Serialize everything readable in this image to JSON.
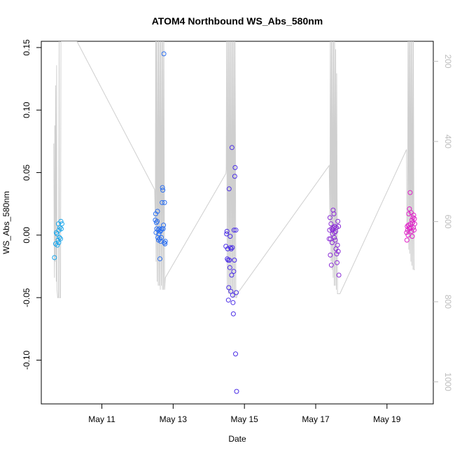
{
  "chart_data": {
    "type": "scatter",
    "title": "ATOM4 Northbound WS_Abs_580nm",
    "xlabel": "Date",
    "ylabel": "WS_Abs_580nm",
    "x_unit": "day of May 2017",
    "xlim": [
      9.3,
      20.3
    ],
    "ylim": [
      -0.135,
      0.155
    ],
    "x_ticks": [
      11,
      13,
      15,
      17,
      19
    ],
    "x_tick_labels": [
      "May 11",
      "May 13",
      "May 15",
      "May 17",
      "May 19"
    ],
    "y_ticks": [
      -0.1,
      -0.05,
      0.0,
      0.05,
      0.1,
      0.15
    ],
    "y_tick_labels": [
      "-0.10",
      "-0.05",
      "0.00",
      "0.05",
      "0.10",
      "0.15"
    ],
    "right_axis": {
      "lim": [
        1055,
        150
      ],
      "ticks": [
        200,
        400,
        600,
        800,
        1000
      ],
      "tick_labels": [
        "200",
        "400",
        "600",
        "800",
        "1000"
      ],
      "color": "#bdbdbd"
    },
    "grid": false,
    "marker": "open-circle",
    "series": [
      {
        "color": "#1aa7ec",
        "points": [
          [
            9.67,
            -0.018
          ],
          [
            9.7,
            -0.007
          ],
          [
            9.72,
            0.002
          ],
          [
            9.74,
            0.001
          ],
          [
            9.75,
            -0.008
          ],
          [
            9.77,
            -0.004
          ],
          [
            9.78,
            0.009
          ],
          [
            9.79,
            -0.006
          ],
          [
            9.8,
            0.004
          ],
          [
            9.81,
            -0.002
          ],
          [
            9.82,
            0.006
          ],
          [
            9.84,
            -0.003
          ],
          [
            9.85,
            0.011
          ],
          [
            9.86,
            0.005
          ],
          [
            9.88,
            0.009
          ]
        ]
      },
      {
        "color": "#2b6ff0",
        "points": [
          [
            12.5,
            0.012
          ],
          [
            12.51,
            0.017
          ],
          [
            12.52,
            0.002
          ],
          [
            12.53,
            0.01
          ],
          [
            12.54,
            0.005
          ],
          [
            12.55,
            0.011
          ],
          [
            12.56,
            0.019
          ],
          [
            12.57,
            -0.002
          ],
          [
            12.58,
            0.004
          ],
          [
            12.59,
            -0.004
          ],
          [
            12.6,
            0.001
          ],
          [
            12.61,
            0.005
          ],
          [
            12.62,
            -0.003
          ],
          [
            12.63,
            -0.019
          ],
          [
            12.64,
            0.003
          ],
          [
            12.65,
            -0.005
          ],
          [
            12.66,
            0.004
          ],
          [
            12.67,
            -0.002
          ],
          [
            12.68,
            0.005
          ],
          [
            12.69,
            0.026
          ],
          [
            12.7,
            0.038
          ],
          [
            12.71,
            0.036
          ],
          [
            12.72,
            0.005
          ],
          [
            12.73,
            0.008
          ],
          [
            12.74,
            0.145
          ],
          [
            12.75,
            -0.006
          ],
          [
            12.76,
            0.026
          ],
          [
            12.77,
            -0.007
          ],
          [
            12.78,
            -0.005
          ]
        ]
      },
      {
        "color": "#4b2ee6",
        "points": [
          [
            14.48,
            -0.009
          ],
          [
            14.5,
            0.001
          ],
          [
            14.51,
            0.003
          ],
          [
            14.52,
            -0.019
          ],
          [
            14.53,
            -0.011
          ],
          [
            14.54,
            -0.02
          ],
          [
            14.55,
            -0.052
          ],
          [
            14.56,
            -0.042
          ],
          [
            14.57,
            0.037
          ],
          [
            14.58,
            -0.02
          ],
          [
            14.59,
            -0.026
          ],
          [
            14.6,
            -0.001
          ],
          [
            14.61,
            -0.01
          ],
          [
            14.62,
            -0.045
          ],
          [
            14.63,
            -0.011
          ],
          [
            14.64,
            -0.032
          ],
          [
            14.65,
            0.07
          ],
          [
            14.66,
            -0.01
          ],
          [
            14.67,
            -0.048
          ],
          [
            14.68,
            -0.054
          ],
          [
            14.69,
            -0.063
          ],
          [
            14.7,
            -0.029
          ],
          [
            14.71,
            0.004
          ],
          [
            14.72,
            -0.02
          ],
          [
            14.73,
            0.047
          ],
          [
            14.74,
            0.054
          ],
          [
            14.75,
            -0.095
          ],
          [
            14.76,
            0.004
          ],
          [
            14.77,
            -0.046
          ],
          [
            14.78,
            -0.125
          ]
        ]
      },
      {
        "color": "#8a2bd6",
        "points": [
          [
            17.38,
            -0.003
          ],
          [
            17.39,
            0.004
          ],
          [
            17.4,
            0.014
          ],
          [
            17.41,
            -0.016
          ],
          [
            17.42,
            -0.003
          ],
          [
            17.43,
            0.009
          ],
          [
            17.44,
            -0.024
          ],
          [
            17.45,
            0.005
          ],
          [
            17.46,
            -0.006
          ],
          [
            17.47,
            0.001
          ],
          [
            17.48,
            0.004
          ],
          [
            17.49,
            0.02
          ],
          [
            17.5,
            0.006
          ],
          [
            17.51,
            0.017
          ],
          [
            17.52,
            -0.002
          ],
          [
            17.53,
            0.002
          ],
          [
            17.54,
            0.007
          ],
          [
            17.55,
            -0.004
          ],
          [
            17.56,
            0.003
          ],
          [
            17.57,
            -0.011
          ],
          [
            17.58,
            0.006
          ],
          [
            17.59,
            -0.015
          ],
          [
            17.6,
            -0.022
          ],
          [
            17.61,
            -0.008
          ],
          [
            17.62,
            0.011
          ],
          [
            17.63,
            -0.013
          ],
          [
            17.64,
            0.007
          ],
          [
            17.65,
            -0.032
          ]
        ]
      },
      {
        "color": "#e020c8",
        "points": [
          [
            19.55,
            0.002
          ],
          [
            19.56,
            -0.004
          ],
          [
            19.57,
            0.007
          ],
          [
            19.58,
            0.004
          ],
          [
            19.59,
            0.0
          ],
          [
            19.6,
            0.008
          ],
          [
            19.61,
            0.017
          ],
          [
            19.62,
            0.006
          ],
          [
            19.63,
            0.021
          ],
          [
            19.64,
            0.005
          ],
          [
            19.65,
            0.034
          ],
          [
            19.66,
            0.009
          ],
          [
            19.67,
            0.006
          ],
          [
            19.68,
            0.018
          ],
          [
            19.69,
            0.003
          ],
          [
            19.7,
            0.012
          ],
          [
            19.71,
            -0.001
          ],
          [
            19.72,
            0.01
          ],
          [
            19.73,
            0.014
          ],
          [
            19.74,
            0.006
          ],
          [
            19.75,
            0.016
          ],
          [
            19.76,
            0.004
          ],
          [
            19.77,
            0.013
          ],
          [
            19.78,
            0.009
          ]
        ]
      }
    ],
    "line_series": {
      "axis": "right",
      "color": "#cfcfcf",
      "points": [
        [
          9.65,
          405
        ],
        [
          9.66,
          600
        ],
        [
          9.67,
          740
        ],
        [
          9.68,
          360
        ],
        [
          9.69,
          700
        ],
        [
          9.7,
          260
        ],
        [
          9.72,
          750
        ],
        [
          9.73,
          210
        ],
        [
          9.74,
          770
        ],
        [
          9.76,
          790
        ],
        [
          9.78,
          790
        ],
        [
          9.79,
          640
        ],
        [
          9.8,
          150
        ],
        [
          9.81,
          790
        ],
        [
          9.84,
          790
        ],
        [
          9.85,
          150
        ],
        [
          10.3,
          150
        ],
        [
          12.48,
          520
        ],
        [
          12.5,
          600
        ],
        [
          12.51,
          150
        ],
        [
          12.52,
          700
        ],
        [
          12.53,
          150
        ],
        [
          12.55,
          750
        ],
        [
          12.56,
          150
        ],
        [
          12.58,
          760
        ],
        [
          12.59,
          150
        ],
        [
          12.61,
          760
        ],
        [
          12.62,
          150
        ],
        [
          12.64,
          770
        ],
        [
          12.65,
          150
        ],
        [
          12.67,
          760
        ],
        [
          12.68,
          150
        ],
        [
          12.7,
          770
        ],
        [
          12.71,
          150
        ],
        [
          12.73,
          770
        ],
        [
          12.74,
          150
        ],
        [
          12.76,
          770
        ],
        [
          12.78,
          740
        ],
        [
          14.48,
          480
        ],
        [
          14.49,
          470
        ],
        [
          14.5,
          150
        ],
        [
          14.52,
          770
        ],
        [
          14.53,
          150
        ],
        [
          14.55,
          780
        ],
        [
          14.56,
          150
        ],
        [
          14.58,
          780
        ],
        [
          14.59,
          150
        ],
        [
          14.61,
          780
        ],
        [
          14.62,
          150
        ],
        [
          14.64,
          780
        ],
        [
          14.65,
          150
        ],
        [
          14.67,
          790
        ],
        [
          14.68,
          150
        ],
        [
          14.7,
          790
        ],
        [
          14.71,
          150
        ],
        [
          14.73,
          790
        ],
        [
          14.74,
          150
        ],
        [
          14.76,
          790
        ],
        [
          14.78,
          790
        ],
        [
          14.8,
          780
        ],
        [
          17.38,
          460
        ],
        [
          17.4,
          600
        ],
        [
          17.41,
          150
        ],
        [
          17.43,
          700
        ],
        [
          17.44,
          150
        ],
        [
          17.46,
          720
        ],
        [
          17.47,
          150
        ],
        [
          17.49,
          740
        ],
        [
          17.5,
          150
        ],
        [
          17.52,
          760
        ],
        [
          17.53,
          150
        ],
        [
          17.55,
          760
        ],
        [
          17.56,
          170
        ],
        [
          17.58,
          770
        ],
        [
          17.59,
          230
        ],
        [
          17.61,
          780
        ],
        [
          17.63,
          780
        ],
        [
          17.68,
          780
        ],
        [
          19.55,
          420
        ],
        [
          19.56,
          630
        ],
        [
          19.58,
          630
        ],
        [
          19.59,
          150
        ],
        [
          19.61,
          670
        ],
        [
          19.62,
          150
        ],
        [
          19.64,
          680
        ],
        [
          19.65,
          150
        ],
        [
          19.67,
          700
        ],
        [
          19.68,
          150
        ],
        [
          19.7,
          710
        ],
        [
          19.71,
          150
        ],
        [
          19.73,
          720
        ],
        [
          19.74,
          150
        ],
        [
          19.76,
          720
        ],
        [
          19.78,
          720
        ]
      ]
    }
  }
}
